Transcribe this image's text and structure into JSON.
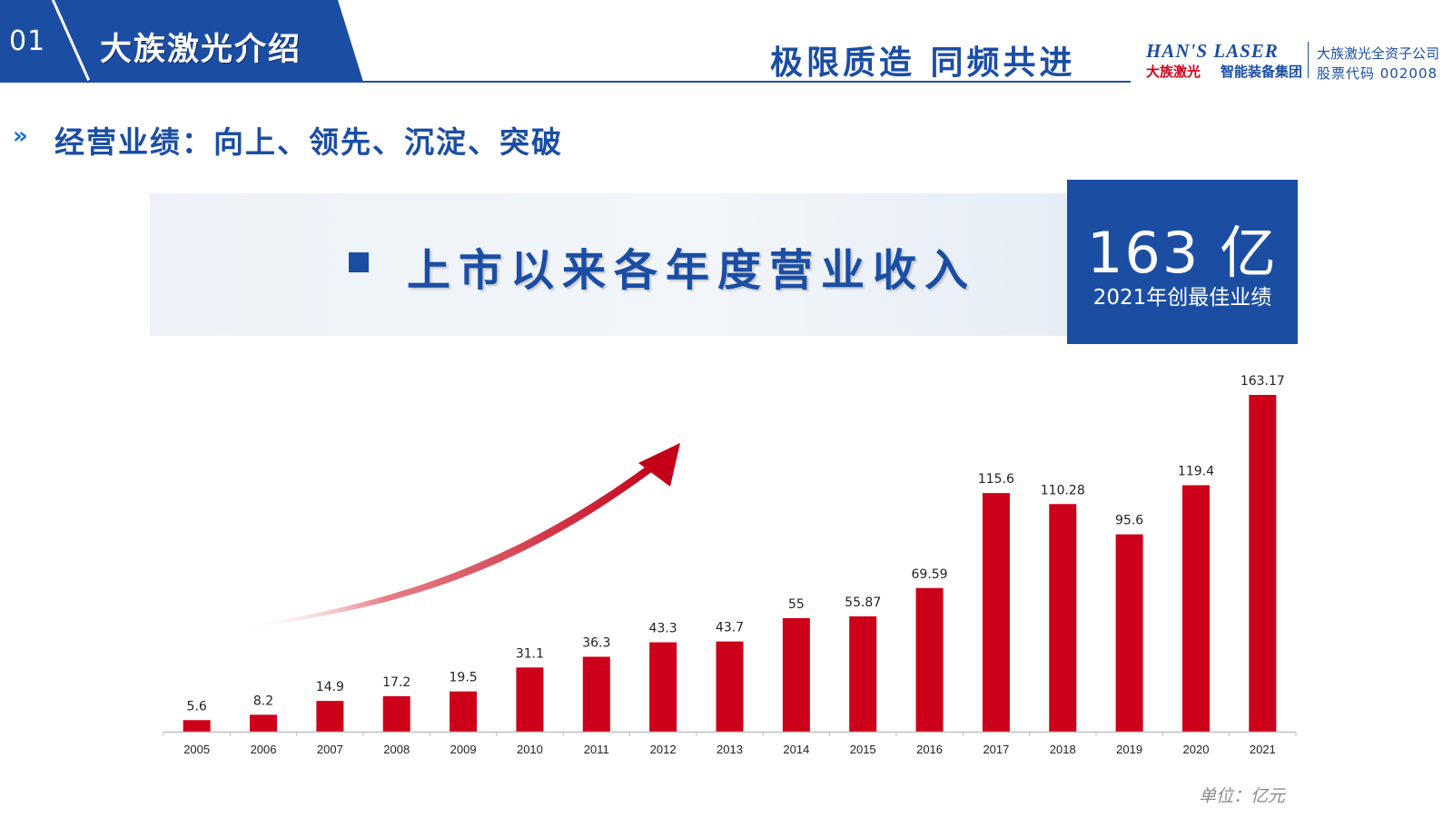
{
  "header": {
    "section_number": "01",
    "section_title": "大族激光介绍",
    "slogan": "极限质造  同频共进",
    "logo_en": "HAN'S LASER",
    "logo_cn_red": "大族激光",
    "logo_cn_blue": "智能装备集团",
    "company_line1": "大族激光全资子公司",
    "company_line2": "股票代码 002008"
  },
  "subtitle": {
    "icon": "»",
    "text": "经营业绩：向上、领先、沉淀、突破"
  },
  "banner": {
    "title": "上市以来各年度营业收入",
    "highlight_value": "163 亿",
    "highlight_caption": "2021年创最佳业绩"
  },
  "colors": {
    "brand_blue": "#1b4ea3",
    "bar_red": "#cc0018"
  },
  "chart_data": {
    "type": "bar",
    "categories": [
      "2005",
      "2006",
      "2007",
      "2008",
      "2009",
      "2010",
      "2011",
      "2012",
      "2013",
      "2014",
      "2015",
      "2016",
      "2017",
      "2018",
      "2019",
      "2020",
      "2021"
    ],
    "values": [
      5.6,
      8.2,
      14.9,
      17.2,
      19.5,
      31.1,
      36.3,
      43.3,
      43.7,
      55,
      55.87,
      69.59,
      115.6,
      110.28,
      95.6,
      119.4,
      163.17
    ],
    "value_labels": [
      "5.6",
      "8.2",
      "14.9",
      "17.2",
      "19.5",
      "31.1",
      "36.3",
      "43.3",
      "43.7",
      "55",
      "55.87",
      "69.59",
      "115.6",
      "110.28",
      "95.6",
      "119.4",
      "163.17"
    ],
    "ylim": [
      0,
      163.17
    ],
    "grid": false,
    "legend": "none",
    "unit_label": "单位：亿元"
  }
}
